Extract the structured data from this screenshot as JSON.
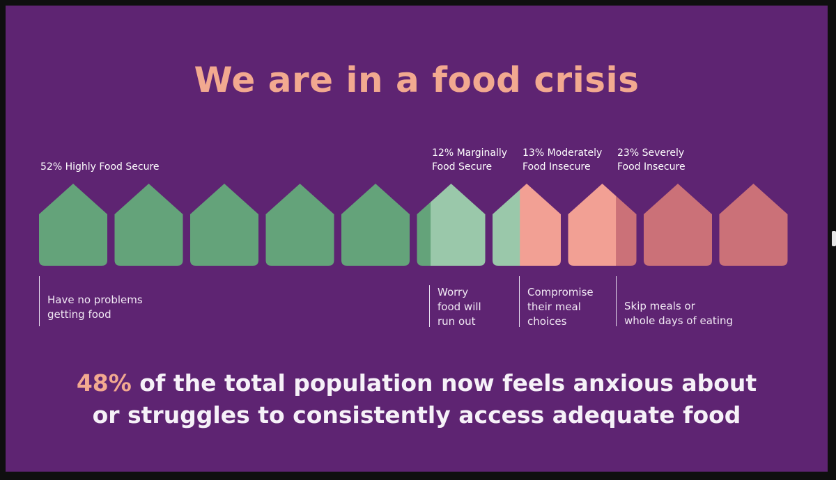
{
  "title": "We are in a food crisis",
  "colors": {
    "background": "#5e2472",
    "title": "#f2a990",
    "highlight": "#f2a990",
    "text": "#f6f1f8",
    "secure": "#64a37a",
    "marginal": "#9ac8aa",
    "moderate": "#f2a094",
    "severe": "#cb7178"
  },
  "categories": [
    {
      "label_line1": "52% Highly Food Secure",
      "label_line2": "",
      "percent": 52,
      "description": [
        "Have no problems",
        "getting food"
      ]
    },
    {
      "label_line1": "12% Marginally",
      "label_line2": "Food Secure",
      "percent": 12,
      "description": [
        "Worry",
        "food will",
        "run out"
      ]
    },
    {
      "label_line1": "13% Moderately",
      "label_line2": "Food  Insecure",
      "percent": 13,
      "description": [
        "Compromise",
        "their meal",
        "choices"
      ]
    },
    {
      "label_line1": "23% Severely",
      "label_line2": "Food Insecure",
      "percent": 23,
      "description": [
        "Skip meals or",
        "whole days of eating"
      ]
    }
  ],
  "house_fills": [
    [
      {
        "color": "secure",
        "fraction": 1
      }
    ],
    [
      {
        "color": "secure",
        "fraction": 1
      }
    ],
    [
      {
        "color": "secure",
        "fraction": 1
      }
    ],
    [
      {
        "color": "secure",
        "fraction": 1
      }
    ],
    [
      {
        "color": "secure",
        "fraction": 1
      }
    ],
    [
      {
        "color": "secure",
        "fraction": 0.2
      },
      {
        "color": "marginal",
        "fraction": 0.8
      }
    ],
    [
      {
        "color": "marginal",
        "fraction": 0.4
      },
      {
        "color": "moderate",
        "fraction": 0.6
      }
    ],
    [
      {
        "color": "moderate",
        "fraction": 0.7
      },
      {
        "color": "severe",
        "fraction": 0.3
      }
    ],
    [
      {
        "color": "severe",
        "fraction": 1
      }
    ],
    [
      {
        "color": "severe",
        "fraction": 1
      }
    ]
  ],
  "footer": {
    "highlight": "48%",
    "line1_rest": " of the total population now feels anxious about",
    "line2": "or struggles to consistently access adequate food"
  }
}
